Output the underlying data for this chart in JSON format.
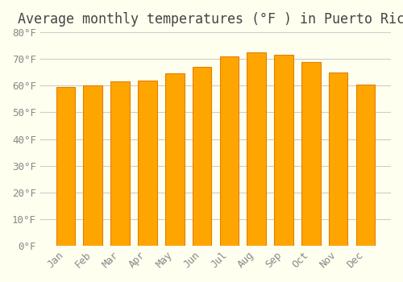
{
  "title": "Average monthly temperatures (°F ) in Puerto Rico",
  "months": [
    "Jan",
    "Feb",
    "Mar",
    "Apr",
    "May",
    "Jun",
    "Jul",
    "Aug",
    "Sep",
    "Oct",
    "Nov",
    "Dec"
  ],
  "values": [
    59.5,
    60.0,
    61.5,
    62.0,
    64.5,
    67.0,
    71.0,
    72.5,
    71.5,
    69.0,
    65.0,
    60.5
  ],
  "bar_color": "#FFA500",
  "bar_edge_color": "#E08000",
  "ylim": [
    0,
    80
  ],
  "yticks": [
    0,
    10,
    20,
    30,
    40,
    50,
    60,
    70,
    80
  ],
  "ytick_labels": [
    "0°F",
    "10°F",
    "20°F",
    "30°F",
    "40°F",
    "50°F",
    "60°F",
    "70°F",
    "80°F"
  ],
  "background_color": "#FFFFF0",
  "grid_color": "#CCCCCC",
  "title_fontsize": 12,
  "tick_fontsize": 9,
  "bar_width": 0.7
}
